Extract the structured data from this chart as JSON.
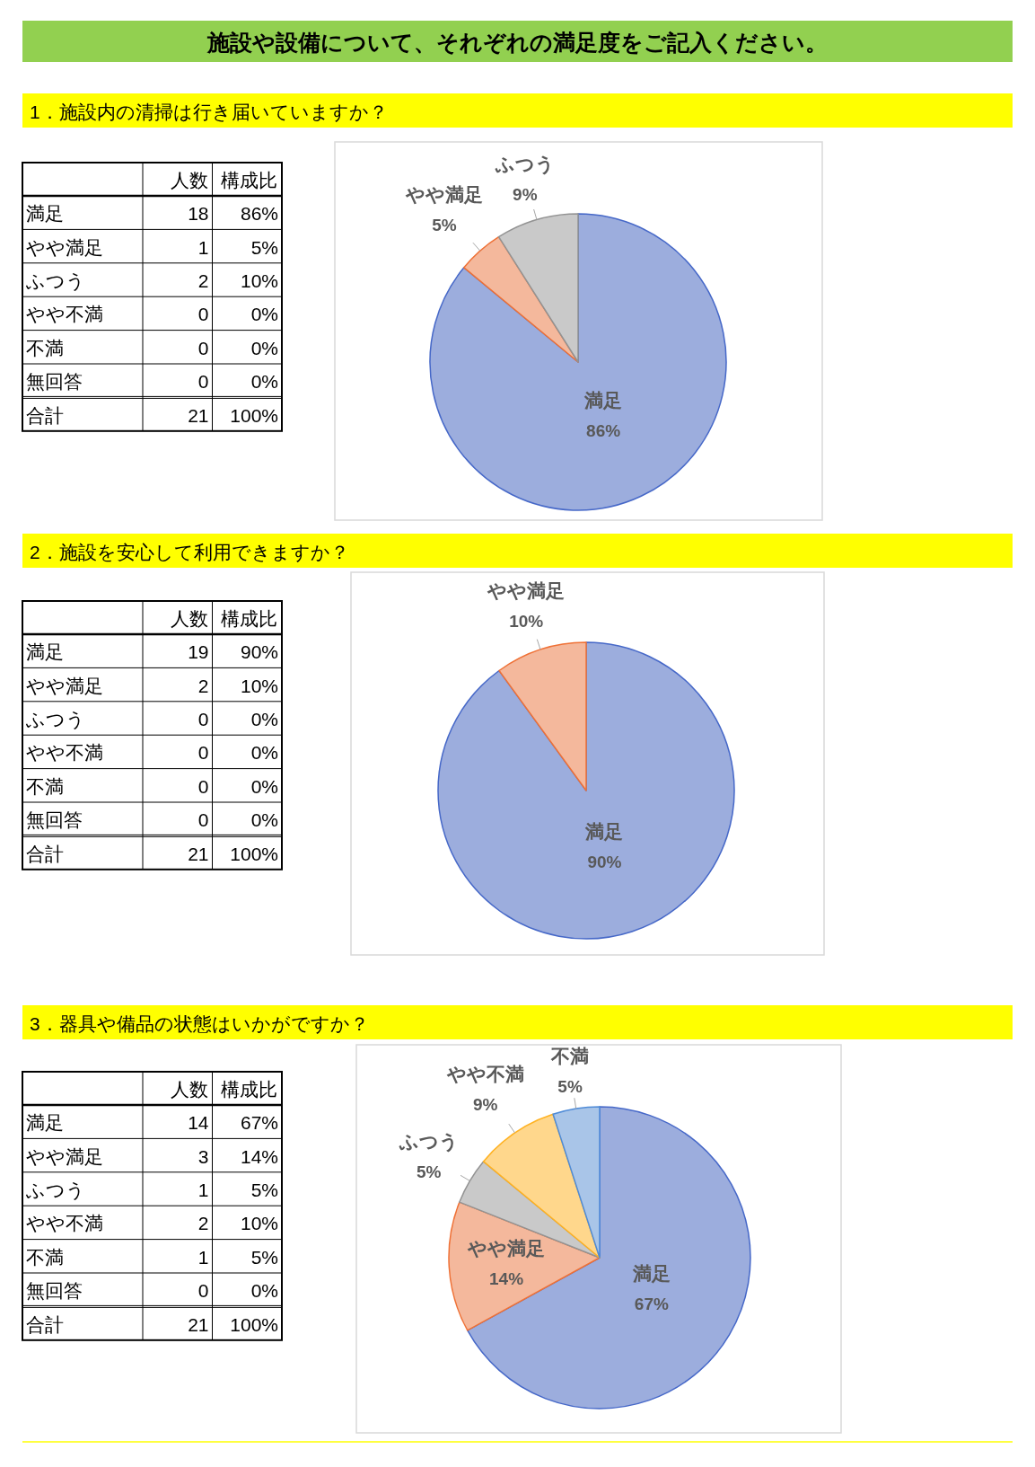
{
  "chart_data": [
    {
      "type": "heatmap",
      "title": "施設や設備について、それぞれの満足度をご記入ください。",
      "subtitle": "1．施設内の清掃は行き届いていますか？",
      "categories": [
        "人数",
        "構成比"
      ],
      "y_categories": [
        "満足",
        "やや満足",
        "ふつう",
        "やや不満",
        "不満",
        "無回答",
        "合計"
      ],
      "cells": [
        [
          18,
          86
        ],
        [
          1,
          5
        ],
        [
          2,
          10
        ],
        [
          0,
          0
        ],
        [
          0,
          0
        ],
        [
          0,
          0
        ],
        [
          21,
          100
        ]
      ],
      "cell_labels": [
        [
          "18",
          "86%"
        ],
        [
          "1",
          "5%"
        ],
        [
          "2",
          "10%"
        ],
        [
          "0",
          "0%"
        ],
        [
          "0",
          "0%"
        ],
        [
          "0",
          "0%"
        ],
        [
          "21",
          "100%"
        ]
      ]
    },
    {
      "type": "pie",
      "categories": [
        "満足",
        "やや満足",
        "ふつう"
      ],
      "values": [
        86,
        5,
        9
      ],
      "colors": [
        "#9caddd",
        "#f4b89c",
        "#c9c9c9"
      ],
      "value_labels": [
        "86%",
        "5%",
        "9%"
      ]
    },
    {
      "type": "heatmap",
      "subtitle": "2．施設を安心して利用できますか？",
      "categories": [
        "人数",
        "構成比"
      ],
      "y_categories": [
        "満足",
        "やや満足",
        "ふつう",
        "やや不満",
        "不満",
        "無回答",
        "合計"
      ],
      "cells": [
        [
          19,
          90
        ],
        [
          2,
          10
        ],
        [
          0,
          0
        ],
        [
          0,
          0
        ],
        [
          0,
          0
        ],
        [
          0,
          0
        ],
        [
          21,
          100
        ]
      ],
      "cell_labels": [
        [
          "19",
          "90%"
        ],
        [
          "2",
          "10%"
        ],
        [
          "0",
          "0%"
        ],
        [
          "0",
          "0%"
        ],
        [
          "0",
          "0%"
        ],
        [
          "0",
          "0%"
        ],
        [
          "21",
          "100%"
        ]
      ]
    },
    {
      "type": "pie",
      "categories": [
        "満足",
        "やや満足"
      ],
      "values": [
        90,
        10
      ],
      "colors": [
        "#9caddd",
        "#f4b89c"
      ],
      "value_labels": [
        "90%",
        "10%"
      ]
    },
    {
      "type": "heatmap",
      "subtitle": "3．器具や備品の状態はいかがですか？",
      "categories": [
        "人数",
        "構成比"
      ],
      "y_categories": [
        "満足",
        "やや満足",
        "ふつう",
        "やや不満",
        "不満",
        "無回答",
        "合計"
      ],
      "cells": [
        [
          14,
          67
        ],
        [
          3,
          14
        ],
        [
          1,
          5
        ],
        [
          2,
          10
        ],
        [
          1,
          5
        ],
        [
          0,
          0
        ],
        [
          21,
          100
        ]
      ],
      "cell_labels": [
        [
          "14",
          "67%"
        ],
        [
          "3",
          "14%"
        ],
        [
          "1",
          "5%"
        ],
        [
          "2",
          "10%"
        ],
        [
          "1",
          "5%"
        ],
        [
          "0",
          "0%"
        ],
        [
          "21",
          "100%"
        ]
      ]
    },
    {
      "type": "pie",
      "categories": [
        "満足",
        "やや満足",
        "ふつう",
        "やや不満",
        "不満"
      ],
      "values": [
        67,
        14,
        5,
        9,
        5
      ],
      "colors": [
        "#9caddd",
        "#f4b89c",
        "#c9c9c9",
        "#ffd78c",
        "#a9c5e8"
      ],
      "value_labels": [
        "67%",
        "14%",
        "5%",
        "9%",
        "5%"
      ]
    }
  ]
}
